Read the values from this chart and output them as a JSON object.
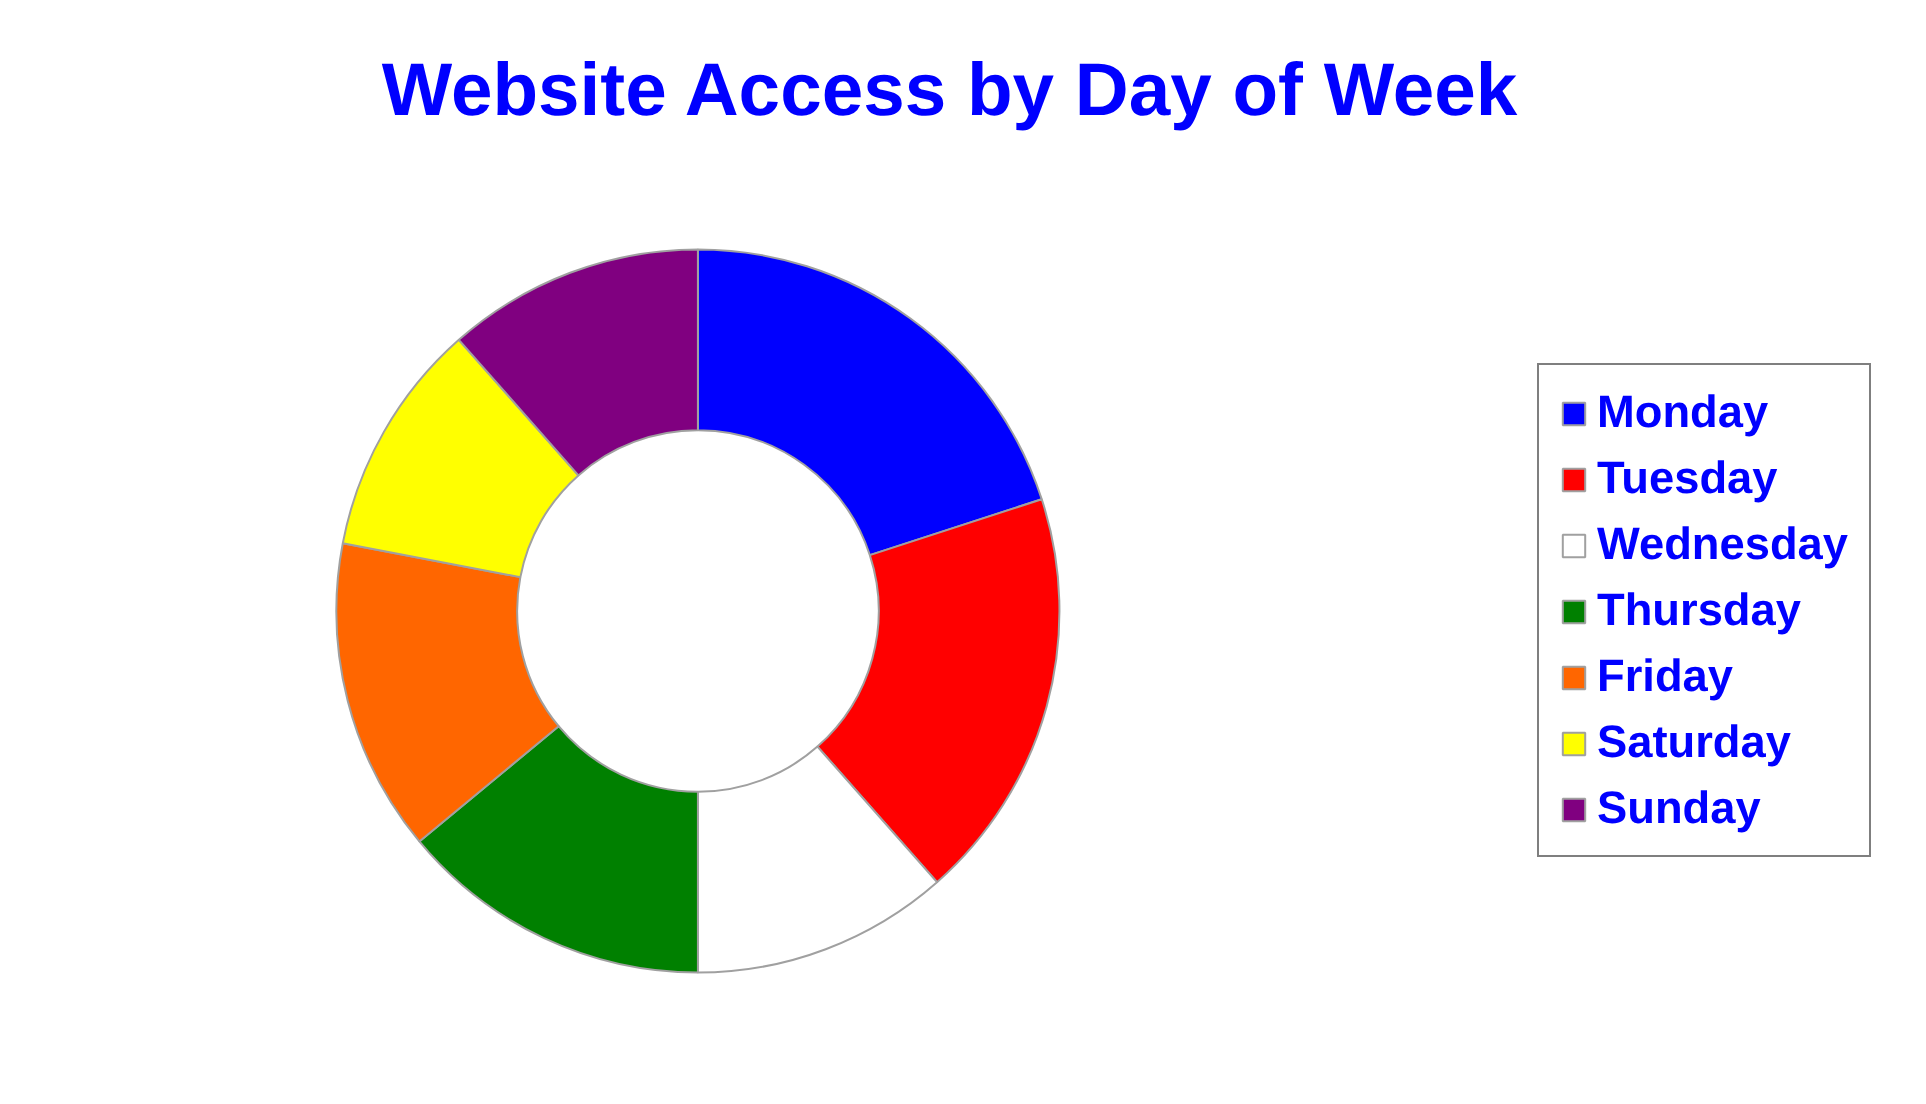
{
  "chart_data": {
    "type": "donut",
    "title": "Website Access by Day of Week",
    "categories": [
      "Monday",
      "Tuesday",
      "Wednesday",
      "Thursday",
      "Friday",
      "Saturday",
      "Sunday"
    ],
    "values": [
      20,
      18.5,
      11.5,
      14,
      14,
      10.5,
      11.5
    ],
    "colors": [
      "#0000ff",
      "#ff0000",
      "#ffffff",
      "#008000",
      "#ff6600",
      "#ffff00",
      "#800080"
    ],
    "legend": "right"
  }
}
